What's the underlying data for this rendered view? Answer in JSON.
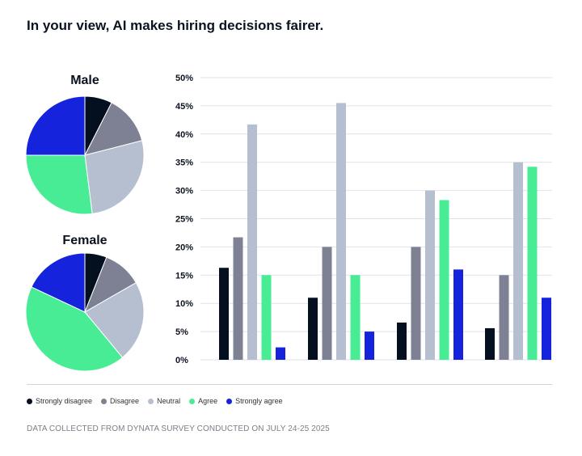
{
  "title": "In your view, AI makes hiring decisions fairer.",
  "footnote": "DATA COLLECTED FROM DYNATA SURVEY CONDUCTED ON JULY 24-25 2025",
  "legend": [
    {
      "label": "Strongly disagree",
      "color": "#04101f"
    },
    {
      "label": "Disagree",
      "color": "#7e8194"
    },
    {
      "label": "Neutral",
      "color": "#b5bfcf"
    },
    {
      "label": "Agree",
      "color": "#48ec94"
    },
    {
      "label": "Strongly agree",
      "color": "#1523dd"
    }
  ],
  "chart_data": [
    {
      "type": "pie",
      "title": "Male",
      "labels": [
        "Strongly disagree",
        "Disagree",
        "Neutral",
        "Agree",
        "Strongly agree"
      ],
      "values": [
        7.5,
        13.5,
        27,
        27,
        25
      ]
    },
    {
      "type": "pie",
      "title": "Female",
      "labels": [
        "Strongly disagree",
        "Disagree",
        "Neutral",
        "Agree",
        "Strongly agree"
      ],
      "values": [
        6,
        10.7,
        22.3,
        43,
        18
      ]
    },
    {
      "type": "bar",
      "categories": [
        "",
        "",
        "",
        ""
      ],
      "series": [
        {
          "name": "Strongly disagree",
          "values": [
            16.3,
            11,
            6.6,
            5.6
          ]
        },
        {
          "name": "Disagree",
          "values": [
            21.7,
            20,
            20,
            15
          ]
        },
        {
          "name": "Neutral",
          "values": [
            41.7,
            45.5,
            30,
            35
          ]
        },
        {
          "name": "Agree",
          "values": [
            15,
            15,
            28.3,
            34.2
          ]
        },
        {
          "name": "Strongly agree",
          "values": [
            2.2,
            5,
            16,
            11
          ]
        }
      ],
      "ylim": [
        0,
        50
      ],
      "yticks": [
        "0%",
        "5%",
        "10%",
        "15%",
        "20%",
        "25%",
        "30%",
        "35%",
        "40%",
        "45%",
        "50%"
      ],
      "grid": true,
      "legend": "bottom"
    }
  ]
}
